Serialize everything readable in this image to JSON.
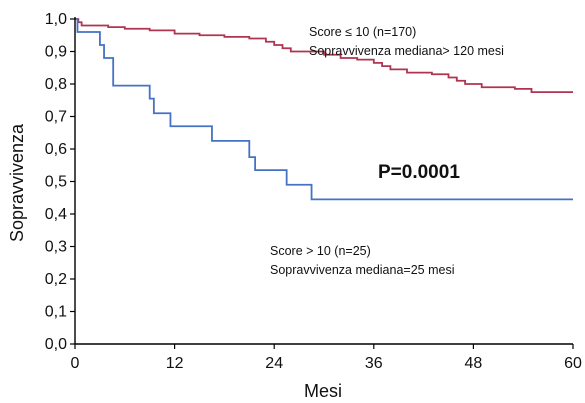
{
  "chart_data": {
    "type": "line",
    "title": "",
    "xlabel": "Mesi",
    "ylabel": "Sopravvivenza",
    "xlim": [
      0,
      60
    ],
    "ylim": [
      0,
      1.0
    ],
    "x_ticks": [
      "0",
      "12",
      "24",
      "36",
      "48",
      "60"
    ],
    "y_ticks": [
      "0,0",
      "0,1",
      "0,2",
      "0,3",
      "0,4",
      "0,5",
      "0,6",
      "0,7",
      "0,8",
      "0,9",
      "1,0"
    ],
    "grid": false,
    "series": [
      {
        "color": "#b0334f",
        "points": [
          [
            0,
            1.0
          ],
          [
            0.4,
            0.99
          ],
          [
            0.8,
            0.98
          ],
          [
            4,
            0.975
          ],
          [
            6,
            0.97
          ],
          [
            9,
            0.965
          ],
          [
            12,
            0.955
          ],
          [
            15,
            0.95
          ],
          [
            18,
            0.945
          ],
          [
            21,
            0.94
          ],
          [
            23,
            0.93
          ],
          [
            24,
            0.92
          ],
          [
            25,
            0.91
          ],
          [
            26,
            0.9
          ],
          [
            30,
            0.89
          ],
          [
            32,
            0.88
          ],
          [
            34,
            0.875
          ],
          [
            36,
            0.865
          ],
          [
            37,
            0.855
          ],
          [
            38,
            0.845
          ],
          [
            40,
            0.835
          ],
          [
            43,
            0.83
          ],
          [
            45,
            0.82
          ],
          [
            46,
            0.81
          ],
          [
            47,
            0.8
          ],
          [
            49,
            0.79
          ],
          [
            53,
            0.785
          ],
          [
            55,
            0.775
          ],
          [
            60,
            0.775
          ]
        ]
      },
      {
        "color": "#4472c4",
        "points": [
          [
            0,
            1.0
          ],
          [
            0.3,
            0.96
          ],
          [
            3,
            0.92
          ],
          [
            3.5,
            0.88
          ],
          [
            4.6,
            0.795
          ],
          [
            9,
            0.755
          ],
          [
            9.5,
            0.71
          ],
          [
            11.5,
            0.67
          ],
          [
            16.5,
            0.625
          ],
          [
            21,
            0.575
          ],
          [
            21.7,
            0.535
          ],
          [
            25.5,
            0.49
          ],
          [
            28.5,
            0.445
          ],
          [
            60,
            0.445
          ]
        ]
      }
    ],
    "annotations": {
      "upper_score": "Score ≤ 10 (n=170)",
      "upper_median": "Sopravvivenza mediana> 120 mesi",
      "lower_score": "Score > 10 (n=25)",
      "lower_median": "Sopravvivenza mediana=25 mesi",
      "p_value": "P=0.0001"
    }
  }
}
